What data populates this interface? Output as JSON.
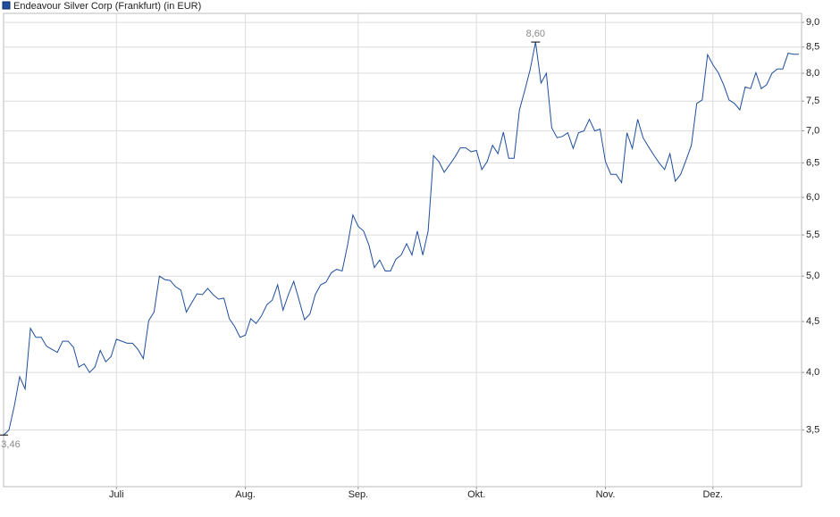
{
  "chart_data": {
    "type": "line",
    "log_y": true,
    "grid": true,
    "legend": "top-left",
    "ylim": [
      3.07,
      9.19
    ],
    "yticks": [
      {
        "value": 3.5,
        "label": "3,5"
      },
      {
        "value": 4.0,
        "label": "4,0"
      },
      {
        "value": 4.5,
        "label": "4,5"
      },
      {
        "value": 5.0,
        "label": "5,0"
      },
      {
        "value": 5.5,
        "label": "5,5"
      },
      {
        "value": 6.0,
        "label": "6,0"
      },
      {
        "value": 6.5,
        "label": "6,5"
      },
      {
        "value": 7.0,
        "label": "7,0"
      },
      {
        "value": 7.5,
        "label": "7,5"
      },
      {
        "value": 8.0,
        "label": "8,0"
      },
      {
        "value": 8.5,
        "label": "8,5"
      },
      {
        "value": 9.0,
        "label": "9,0"
      }
    ],
    "categories": [
      null,
      null,
      null,
      null,
      null,
      null,
      null,
      null,
      null,
      null,
      null,
      null,
      null,
      null,
      null,
      null,
      null,
      null,
      null,
      null,
      null,
      "Juli",
      null,
      null,
      null,
      null,
      null,
      null,
      null,
      null,
      null,
      null,
      null,
      null,
      null,
      null,
      null,
      null,
      null,
      null,
      null,
      null,
      null,
      null,
      null,
      "Aug.",
      null,
      null,
      null,
      null,
      null,
      null,
      null,
      null,
      null,
      null,
      null,
      null,
      null,
      null,
      null,
      null,
      null,
      null,
      null,
      null,
      "Sep.",
      null,
      null,
      null,
      null,
      null,
      null,
      null,
      null,
      null,
      null,
      null,
      null,
      null,
      null,
      null,
      null,
      null,
      null,
      null,
      null,
      null,
      "Okt.",
      null,
      null,
      null,
      null,
      null,
      null,
      null,
      null,
      null,
      null,
      null,
      null,
      null,
      null,
      null,
      null,
      null,
      null,
      null,
      null,
      null,
      null,
      null,
      "Nov.",
      null,
      null,
      null,
      null,
      null,
      null,
      null,
      null,
      null,
      null,
      null,
      null,
      null,
      null,
      null,
      null,
      null,
      null,
      null,
      "Dez.",
      null,
      null,
      null,
      null,
      null,
      null,
      null,
      null,
      null,
      null,
      null,
      null,
      null,
      null,
      null,
      null
    ],
    "series": [
      {
        "name": "Endeavour Silver Corp (Frankfurt) (in EUR)",
        "color": "#1f4e9c",
        "values": [
          3.46,
          3.5,
          3.7,
          3.96,
          3.85,
          4.43,
          4.34,
          4.34,
          4.25,
          4.22,
          4.19,
          4.3,
          4.3,
          4.24,
          4.05,
          4.08,
          4.0,
          4.05,
          4.21,
          4.1,
          4.15,
          4.32,
          4.3,
          4.28,
          4.28,
          4.22,
          4.13,
          4.51,
          4.6,
          5.0,
          4.96,
          4.95,
          4.88,
          4.84,
          4.6,
          4.7,
          4.8,
          4.79,
          4.86,
          4.79,
          4.74,
          4.75,
          4.53,
          4.45,
          4.34,
          4.36,
          4.53,
          4.48,
          4.56,
          4.68,
          4.73,
          4.9,
          4.62,
          4.79,
          4.94,
          4.73,
          4.52,
          4.58,
          4.79,
          4.9,
          4.93,
          5.04,
          5.08,
          5.06,
          5.37,
          5.76,
          5.61,
          5.55,
          5.37,
          5.1,
          5.19,
          5.06,
          5.06,
          5.2,
          5.25,
          5.39,
          5.25,
          5.55,
          5.25,
          5.55,
          6.61,
          6.52,
          6.36,
          6.47,
          6.59,
          6.73,
          6.73,
          6.67,
          6.69,
          6.4,
          6.52,
          6.77,
          6.64,
          6.98,
          6.57,
          6.57,
          7.35,
          7.69,
          8.07,
          8.6,
          7.82,
          8.0,
          7.05,
          6.89,
          6.91,
          6.97,
          6.72,
          6.97,
          7.0,
          7.19,
          7.0,
          7.03,
          6.52,
          6.33,
          6.33,
          6.21,
          6.97,
          6.72,
          7.19,
          6.89,
          6.75,
          6.62,
          6.5,
          6.4,
          6.64,
          6.23,
          6.33,
          6.54,
          6.77,
          7.46,
          7.52,
          8.35,
          8.16,
          8.01,
          7.79,
          7.52,
          7.46,
          7.35,
          7.75,
          7.72,
          8.01,
          7.72,
          7.79,
          8.0,
          8.08,
          8.08,
          8.38,
          8.36,
          8.36
        ]
      }
    ],
    "annotations": [
      {
        "label": "3,46",
        "value": 3.46
      },
      {
        "label": "8,60",
        "value": 8.6
      }
    ]
  }
}
